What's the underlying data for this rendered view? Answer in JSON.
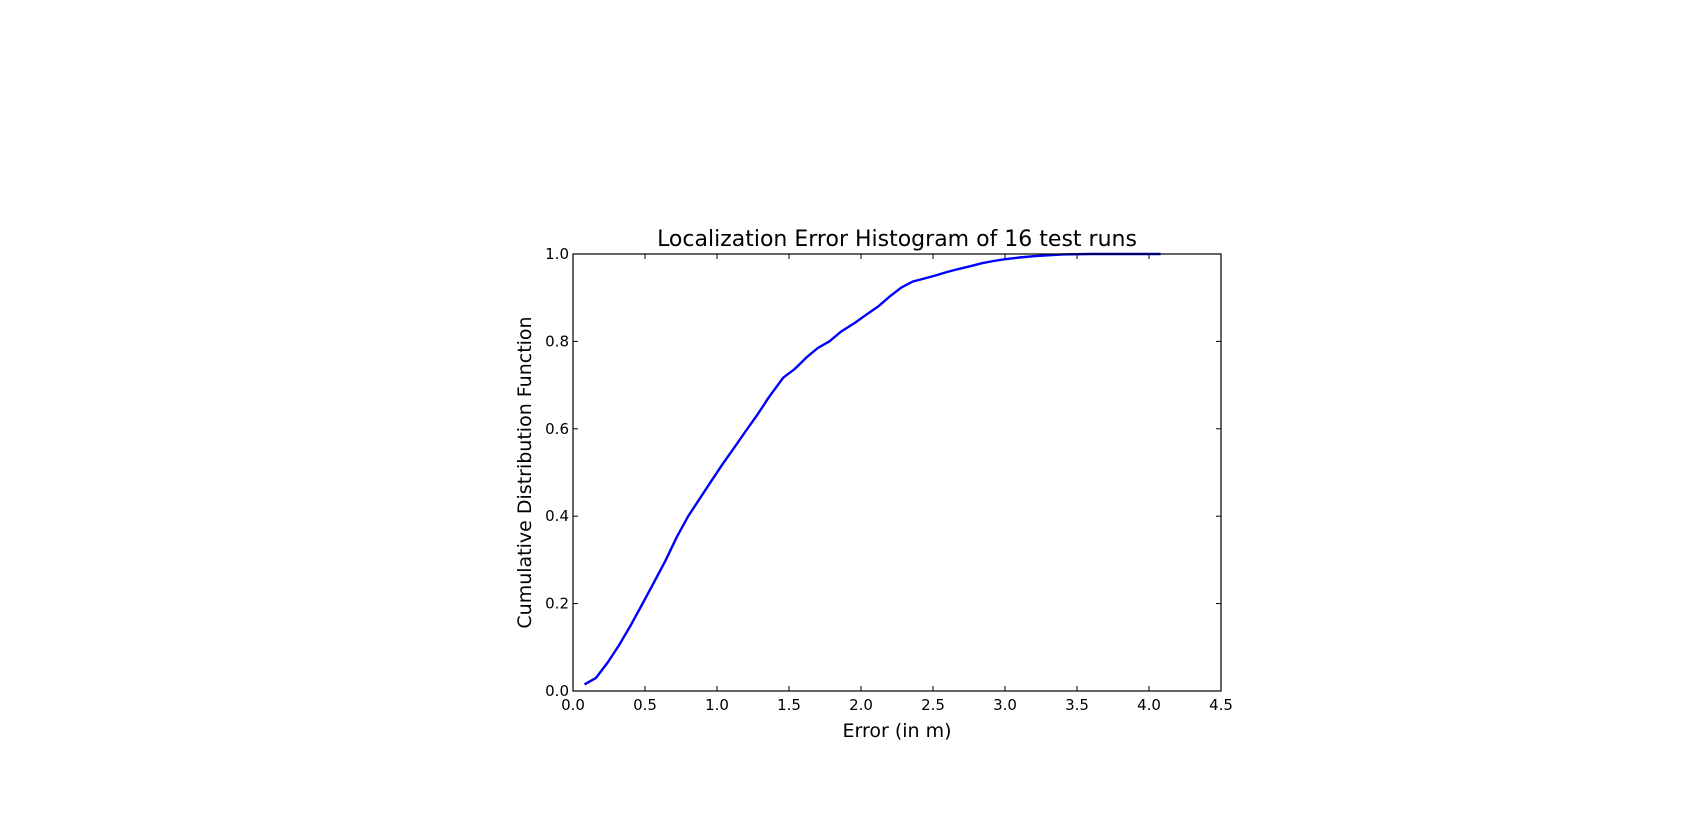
{
  "chart_data": {
    "type": "line",
    "title": "Localization Error Histogram of 16 test runs",
    "xlabel": "Error (in m)",
    "ylabel": "Cumulative Distribution Function",
    "xlim": [
      0.0,
      4.5
    ],
    "ylim": [
      0.0,
      1.0
    ],
    "xticks": [
      "0.0",
      "0.5",
      "1.0",
      "1.5",
      "2.0",
      "2.5",
      "3.0",
      "3.5",
      "4.0",
      "4.5"
    ],
    "yticks": [
      "0.0",
      "0.2",
      "0.4",
      "0.6",
      "0.8",
      "1.0"
    ],
    "grid": false,
    "series": [
      {
        "color": "#0000ff",
        "x": [
          0.08,
          0.16,
          0.24,
          0.32,
          0.4,
          0.48,
          0.56,
          0.64,
          0.72,
          0.8,
          0.88,
          0.96,
          1.04,
          1.12,
          1.2,
          1.28,
          1.36,
          1.46,
          1.54,
          1.62,
          1.7,
          1.78,
          1.86,
          1.96,
          2.04,
          2.12,
          2.2,
          2.28,
          2.36,
          2.44,
          2.52,
          2.6,
          2.68,
          2.76,
          2.84,
          2.92,
          3.0,
          3.1,
          3.2,
          3.3,
          3.4,
          3.6,
          3.8,
          4.0,
          4.08
        ],
        "y": [
          0.015,
          0.03,
          0.065,
          0.105,
          0.15,
          0.198,
          0.247,
          0.297,
          0.352,
          0.4,
          0.44,
          0.48,
          0.52,
          0.557,
          0.595,
          0.632,
          0.672,
          0.717,
          0.737,
          0.763,
          0.785,
          0.8,
          0.822,
          0.843,
          0.862,
          0.88,
          0.903,
          0.923,
          0.937,
          0.944,
          0.951,
          0.959,
          0.966,
          0.972,
          0.979,
          0.984,
          0.988,
          0.992,
          0.995,
          0.997,
          0.999,
          1.0,
          1.0,
          1.0,
          1.0
        ]
      }
    ]
  }
}
